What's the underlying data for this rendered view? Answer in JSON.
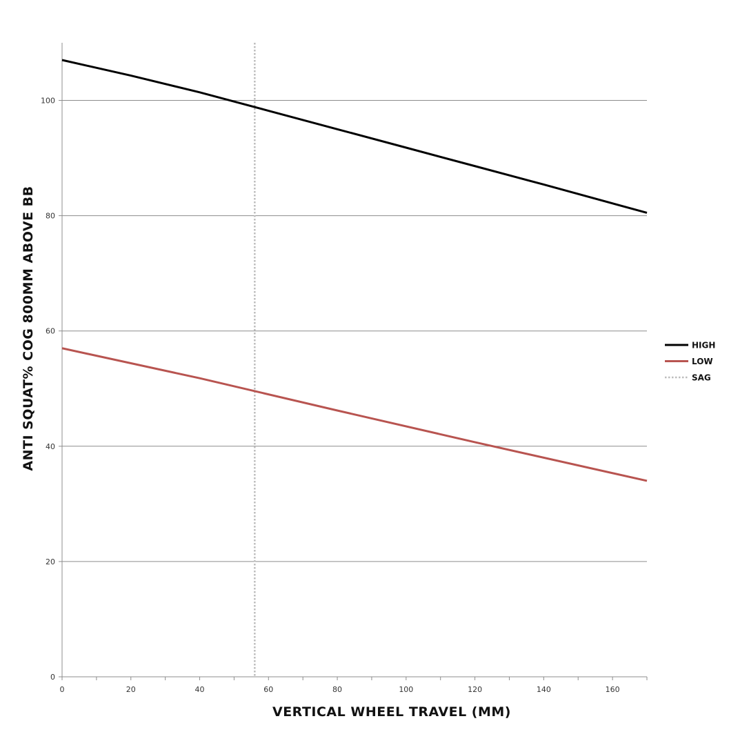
{
  "chart_data": {
    "type": "line",
    "title": "",
    "xlabel": "VERTICAL WHEEL TRAVEL (MM)",
    "ylabel": "ANTI SQUAT% COG 800MM ABOVE BB",
    "xlim": [
      0,
      170
    ],
    "ylim": [
      0,
      110
    ],
    "xticks": [
      0,
      20,
      40,
      60,
      80,
      100,
      120,
      140,
      160
    ],
    "yticks": [
      0,
      20,
      40,
      60,
      80,
      100
    ],
    "grid": "horizontal",
    "legend_position": "right",
    "series": [
      {
        "name": "HIGH",
        "color": "#000000",
        "style": "solid",
        "x": [
          0,
          20,
          40,
          60,
          80,
          100,
          120,
          140,
          170
        ],
        "y": [
          107.0,
          104.3,
          101.4,
          98.2,
          95.0,
          91.8,
          88.6,
          85.4,
          80.5
        ]
      },
      {
        "name": "LOW",
        "color": "#b85450",
        "style": "solid",
        "x": [
          0,
          40,
          80,
          120,
          170
        ],
        "y": [
          57.0,
          51.8,
          46.2,
          40.7,
          34.0
        ]
      }
    ],
    "vlines": [
      {
        "name": "SAG",
        "x": 56,
        "color": "#bdbdbd",
        "style": "dotted"
      }
    ]
  }
}
